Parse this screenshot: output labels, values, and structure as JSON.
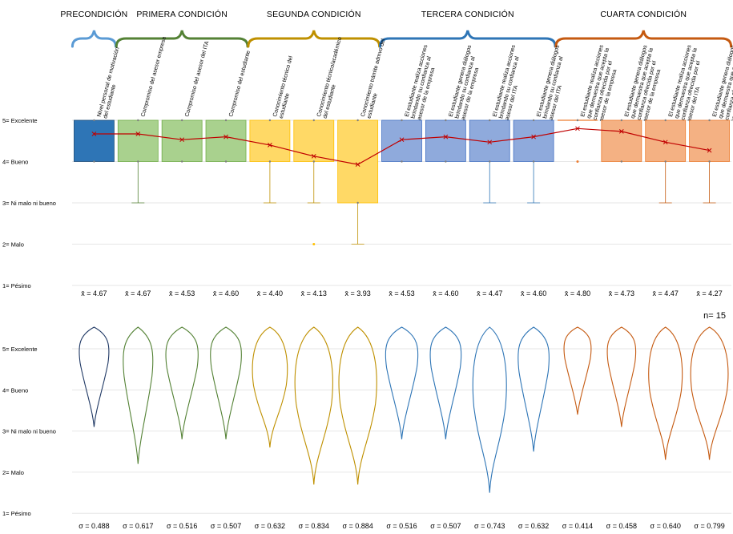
{
  "chart_data": {
    "type": "boxplot_violin",
    "n_label": "n= 15",
    "y_levels": [
      {
        "value": 5,
        "label": "5= Excelente"
      },
      {
        "value": 4,
        "label": "4= Bueno"
      },
      {
        "value": 3,
        "label": "3= Ni malo ni bueno"
      },
      {
        "value": 2,
        "label": "2= Malo"
      },
      {
        "value": 1,
        "label": "1= Pésimo"
      }
    ],
    "ylim": [
      1,
      5
    ],
    "groups": [
      {
        "title": "PRECONDICIÓN",
        "color": "#5b9bd5",
        "start": 0,
        "end": 0
      },
      {
        "title": "PRIMERA CONDICIÓN",
        "color": "#548235",
        "start": 1,
        "end": 3
      },
      {
        "title": "SEGUNDA CONDICIÓN",
        "color": "#bf9000",
        "start": 4,
        "end": 6
      },
      {
        "title": "TERCERA CONDICIÓN",
        "color": "#2e75b6",
        "start": 7,
        "end": 10
      },
      {
        "title": "CUARTA CONDICIÓN",
        "color": "#c55a11",
        "start": 11,
        "end": 14
      }
    ],
    "items": [
      {
        "label": "Nivel personal de motivación del estudiante",
        "mean": 4.67,
        "mean_label": "x̄ = 4.67",
        "sd_label": "σ = 0.488",
        "q1": 4,
        "q3": 5,
        "wmin": 4,
        "wmax": 5,
        "outliers": [],
        "fill": "#2e75b6",
        "edge": "#1f4e79",
        "violin": "#1f3864",
        "vmin": 3.1
      },
      {
        "label": "Compromiso del asesor empresa",
        "mean": 4.67,
        "mean_label": "x̄ = 4.67",
        "sd_label": "σ = 0.617",
        "q1": 4,
        "q3": 5,
        "wmin": 3,
        "wmax": 5,
        "outliers": [],
        "fill": "#a9d18e",
        "edge": "#70ad47",
        "violin": "#548235",
        "vmin": 2.2
      },
      {
        "label": "Compromiso del asesor del ITA",
        "mean": 4.53,
        "mean_label": "x̄ = 4.53",
        "sd_label": "σ = 0.516",
        "q1": 4,
        "q3": 5,
        "wmin": 4,
        "wmax": 5,
        "outliers": [],
        "fill": "#a9d18e",
        "edge": "#70ad47",
        "violin": "#548235",
        "vmin": 2.8
      },
      {
        "label": "Compromiso del estudiante",
        "mean": 4.6,
        "mean_label": "x̄ = 4.60",
        "sd_label": "σ = 0.507",
        "q1": 4,
        "q3": 5,
        "wmin": 4,
        "wmax": 5,
        "outliers": [],
        "fill": "#a9d18e",
        "edge": "#70ad47",
        "violin": "#548235",
        "vmin": 2.8
      },
      {
        "label": "Conocimiento técnico del estudiante",
        "mean": 4.4,
        "mean_label": "x̄ = 4.40",
        "sd_label": "σ = 0.632",
        "q1": 4,
        "q3": 5,
        "wmin": 3,
        "wmax": 5,
        "outliers": [],
        "fill": "#ffd966",
        "edge": "#ffc000",
        "violin": "#bf9000",
        "vmin": 2.6
      },
      {
        "label": "Conocimiento técnico/académico del estudiante",
        "mean": 4.13,
        "mean_label": "x̄ = 4.13",
        "sd_label": "σ = 0.834",
        "q1": 4,
        "q3": 5,
        "wmin": 3,
        "wmax": 5,
        "outliers": [
          2
        ],
        "fill": "#ffd966",
        "edge": "#ffc000",
        "violin": "#bf9000",
        "vmin": 1.7
      },
      {
        "label": "Conocimiento trámite admvo del estudiante",
        "mean": 3.93,
        "mean_label": "x̄ = 3.93",
        "sd_label": "σ = 0.884",
        "q1": 3,
        "q3": 5,
        "wmin": 2,
        "wmax": 5,
        "outliers": [],
        "fill": "#ffd966",
        "edge": "#ffc000",
        "violin": "#bf9000",
        "vmin": 1.7
      },
      {
        "label": "El estudiante realiza acciones brindando su confianza al asesor de la empresa",
        "mean": 4.53,
        "mean_label": "x̄ = 4.53",
        "sd_label": "σ = 0.516",
        "q1": 4,
        "q3": 5,
        "wmin": 4,
        "wmax": 5,
        "outliers": [],
        "fill": "#8faadc",
        "edge": "#4472c4",
        "violin": "#2e75b6",
        "vmin": 2.8
      },
      {
        "label": "El estudiante genera diálogos brindando su confianza al asesor de la empresa",
        "mean": 4.6,
        "mean_label": "x̄ = 4.60",
        "sd_label": "σ = 0.507",
        "q1": 4,
        "q3": 5,
        "wmin": 4,
        "wmax": 5,
        "outliers": [],
        "fill": "#8faadc",
        "edge": "#4472c4",
        "violin": "#2e75b6",
        "vmin": 2.8
      },
      {
        "label": "El estudiante realiza acciones brindando su confianza al asesor del ITA",
        "mean": 4.47,
        "mean_label": "x̄ = 4.47",
        "sd_label": "σ = 0.743",
        "q1": 4,
        "q3": 5,
        "wmin": 3,
        "wmax": 5,
        "outliers": [],
        "fill": "#8faadc",
        "edge": "#4472c4",
        "violin": "#2e75b6",
        "vmin": 1.5
      },
      {
        "label": "El estudiante genera diálogos brindando su confianza al asesor del ITA",
        "mean": 4.6,
        "mean_label": "x̄ = 4.60",
        "sd_label": "σ = 0.632",
        "q1": 4,
        "q3": 5,
        "wmin": 3,
        "wmax": 5,
        "outliers": [],
        "fill": "#8faadc",
        "edge": "#4472c4",
        "violin": "#2e75b6",
        "vmin": 2.5
      },
      {
        "label": "El estudiante realiza acciones que demuestra que acepta la confianza ofrecida por el asesor de la empresa",
        "mean": 4.8,
        "mean_label": "x̄ = 4.80",
        "sd_label": "σ = 0.414",
        "q1": 5,
        "q3": 5,
        "wmin": 5,
        "wmax": 5,
        "outliers": [
          4
        ],
        "fill": "#f4b183",
        "edge": "#ed7d31",
        "violin": "#c55a11",
        "vmin": 3.4
      },
      {
        "label": "El estudiante genera diálogos que demuestra que acepta la confianza ofrecida por el asesor de la empresa",
        "mean": 4.73,
        "mean_label": "x̄ = 4.73",
        "sd_label": "σ = 0.458",
        "q1": 4,
        "q3": 5,
        "wmin": 4,
        "wmax": 5,
        "outliers": [],
        "fill": "#f4b183",
        "edge": "#ed7d31",
        "violin": "#c55a11",
        "vmin": 3.1
      },
      {
        "label": "El estudiante realiza acciones que demuestra que acepta la confianza ofrecida por el asesor del ITA",
        "mean": 4.47,
        "mean_label": "x̄ = 4.47",
        "sd_label": "σ = 0.640",
        "q1": 4,
        "q3": 5,
        "wmin": 3,
        "wmax": 5,
        "outliers": [],
        "fill": "#f4b183",
        "edge": "#ed7d31",
        "violin": "#c55a11",
        "vmin": 2.3
      },
      {
        "label": "El estudiante genera diálogos que demuestra que acepta la confianza ofrecida por el asesor del ITA",
        "mean": 4.27,
        "mean_label": "x̄ = 4.27",
        "sd_label": "σ = 0.799",
        "q1": 4,
        "q3": 5,
        "wmin": 3,
        "wmax": 5,
        "outliers": [],
        "fill": "#f4b183",
        "edge": "#ed7d31",
        "violin": "#c55a11",
        "vmin": 2.3
      }
    ],
    "mean_line_color": "#c00000"
  }
}
